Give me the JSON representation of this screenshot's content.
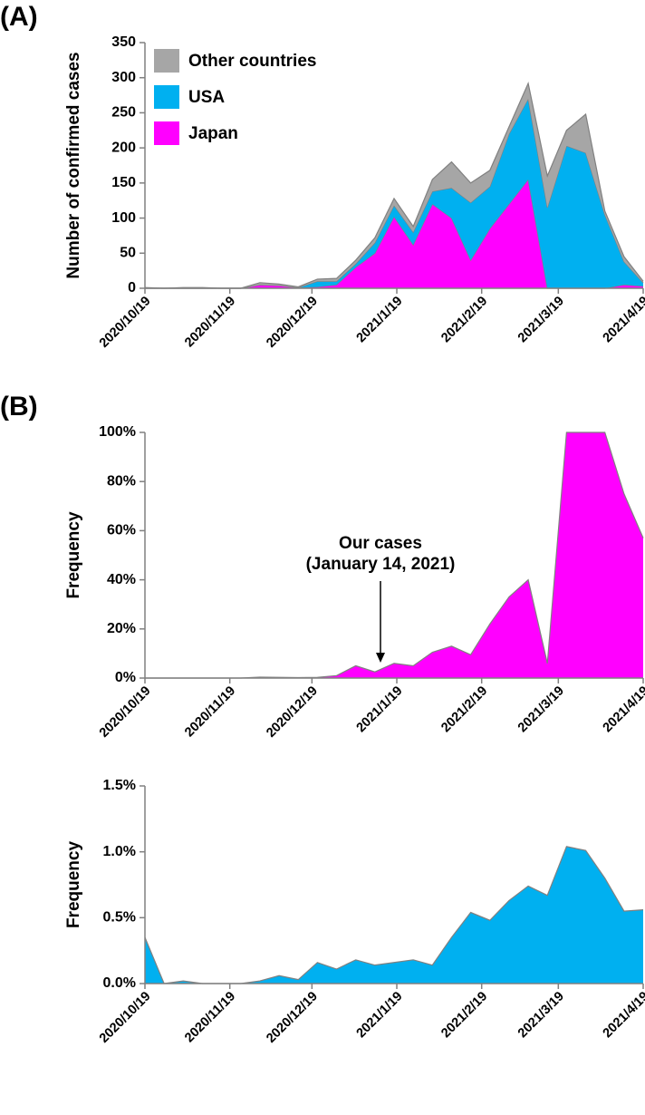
{
  "chart_data": [
    {
      "type": "stacked_area",
      "panel_label": "(A)",
      "y_label": "Number of  confirmed cases",
      "x": [
        "2020/10/19",
        "2020/10/26",
        "2020/11/2",
        "2020/11/9",
        "2020/11/16",
        "2020/11/23",
        "2020/11/30",
        "2020/12/7",
        "2020/12/14",
        "2020/12/21",
        "2020/12/28",
        "2021/1/4",
        "2021/1/11",
        "2021/1/18",
        "2021/1/25",
        "2021/2/1",
        "2021/2/8",
        "2021/2/15",
        "2021/2/22",
        "2021/3/1",
        "2021/3/8",
        "2021/3/15",
        "2021/3/22",
        "2021/3/29",
        "2021/4/5",
        "2021/4/12",
        "2021/4/19"
      ],
      "series": [
        {
          "name": "Japan",
          "color": "#ff00ff",
          "values": [
            0,
            0,
            0,
            0,
            0,
            0,
            5,
            4,
            1,
            2,
            5,
            30,
            50,
            102,
            62,
            120,
            100,
            40,
            85,
            120,
            155,
            0,
            0,
            0,
            0,
            5,
            3
          ]
        },
        {
          "name": "USA",
          "color": "#00b0f0",
          "values": [
            0,
            0,
            0,
            0,
            0,
            0,
            0,
            0,
            0,
            8,
            5,
            5,
            15,
            16,
            18,
            18,
            43,
            82,
            60,
            100,
            115,
            115,
            203,
            193,
            105,
            33,
            5
          ]
        },
        {
          "name": "Other countries",
          "color": "#a6a6a6",
          "values": [
            1,
            0,
            1,
            1,
            0,
            0,
            3,
            2,
            1,
            3,
            4,
            5,
            7,
            10,
            8,
            17,
            37,
            28,
            23,
            10,
            22,
            45,
            22,
            55,
            5,
            7,
            2
          ]
        }
      ],
      "ylim": [
        0,
        350
      ],
      "yticks": [
        0,
        50,
        100,
        150,
        200,
        250,
        300,
        350
      ],
      "xticks": [
        "2020/10/19",
        "2020/11/19",
        "2020/12/19",
        "2021/1/19",
        "2021/2/19",
        "2021/3/19",
        "2021/4/19"
      ],
      "legend": "top-left"
    },
    {
      "type": "area",
      "panel_label": "(B)",
      "y_label": "Frequency",
      "x": [
        "2020/10/19",
        "2020/10/26",
        "2020/11/2",
        "2020/11/9",
        "2020/11/16",
        "2020/11/23",
        "2020/11/30",
        "2020/12/7",
        "2020/12/14",
        "2020/12/21",
        "2020/12/28",
        "2021/1/4",
        "2021/1/11",
        "2021/1/18",
        "2021/1/25",
        "2021/2/1",
        "2021/2/8",
        "2021/2/15",
        "2021/2/22",
        "2021/3/1",
        "2021/3/8",
        "2021/3/15",
        "2021/3/22",
        "2021/3/29",
        "2021/4/5",
        "2021/4/12",
        "2021/4/19"
      ],
      "series": [
        {
          "name": "Japan",
          "color": "#ff00ff",
          "values": [
            0,
            0,
            0,
            0,
            0,
            0,
            0.4,
            0.3,
            0.2,
            0.3,
            1,
            5,
            2.5,
            6,
            5,
            10.5,
            13,
            9.5,
            22,
            33,
            40,
            6,
            100,
            100,
            100,
            75,
            57
          ]
        }
      ],
      "ylim": [
        0,
        100
      ],
      "yticks": [
        {
          "value": 0,
          "label": "0%"
        },
        {
          "value": 20,
          "label": "20%"
        },
        {
          "value": 40,
          "label": "40%"
        },
        {
          "value": 60,
          "label": "60%"
        },
        {
          "value": 80,
          "label": "80%"
        },
        {
          "value": 100,
          "label": "100%"
        }
      ],
      "xticks": [
        "2020/10/19",
        "2020/11/19",
        "2020/12/19",
        "2021/1/19",
        "2021/2/19",
        "2021/3/19",
        "2021/4/19"
      ],
      "annotation": [
        "Our cases",
        "(January 14, 2021)"
      ]
    },
    {
      "type": "area",
      "y_label": "Frequency",
      "x": [
        "2020/10/19",
        "2020/10/26",
        "2020/11/2",
        "2020/11/9",
        "2020/11/16",
        "2020/11/23",
        "2020/11/30",
        "2020/12/7",
        "2020/12/14",
        "2020/12/21",
        "2020/12/28",
        "2021/1/4",
        "2021/1/11",
        "2021/1/18",
        "2021/1/25",
        "2021/2/1",
        "2021/2/8",
        "2021/2/15",
        "2021/2/22",
        "2021/3/1",
        "2021/3/8",
        "2021/3/15",
        "2021/3/22",
        "2021/3/29",
        "2021/4/5",
        "2021/4/12",
        "2021/4/19"
      ],
      "series": [
        {
          "name": "USA",
          "color": "#00b0f0",
          "values": [
            0.35,
            0,
            0.02,
            0,
            0,
            0,
            0.02,
            0.06,
            0.03,
            0.16,
            0.11,
            0.18,
            0.14,
            0.16,
            0.18,
            0.14,
            0.35,
            0.54,
            0.48,
            0.63,
            0.74,
            0.67,
            1.04,
            1.01,
            0.8,
            0.55,
            0.56
          ]
        }
      ],
      "ylim": [
        0,
        1.5
      ],
      "yticks": [
        {
          "value": 0,
          "label": "0.0%"
        },
        {
          "value": 0.5,
          "label": "0.5%"
        },
        {
          "value": 1,
          "label": "1.0%"
        },
        {
          "value": 1.5,
          "label": "1.5%"
        }
      ],
      "xticks": [
        "2020/10/19",
        "2020/11/19",
        "2020/12/19",
        "2021/1/19",
        "2021/2/19",
        "2021/3/19",
        "2021/4/19"
      ]
    }
  ]
}
